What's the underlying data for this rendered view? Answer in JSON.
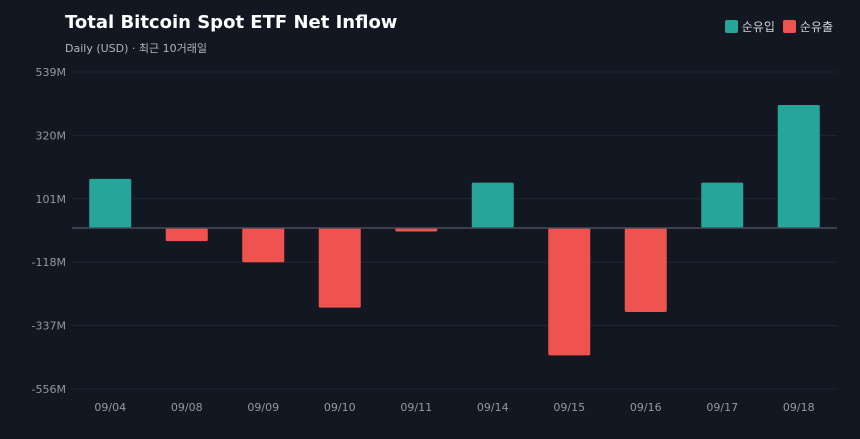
{
  "header": {
    "title": "Total Bitcoin Spot ETF Net Inflow",
    "subtitle": "Daily (USD) · 최근 10거래일"
  },
  "legend": [
    {
      "label": "순유입",
      "color": "#26a69a"
    },
    {
      "label": "순유출",
      "color": "#ef5350"
    }
  ],
  "colors": {
    "positive": "#26a69a",
    "negative": "#ef5350",
    "grid": "#222632",
    "zero_line": "#4a4e5a",
    "background": "#131722"
  },
  "chart_data": {
    "type": "bar",
    "categories": [
      "09/04",
      "09/08",
      "09/09",
      "09/10",
      "09/11",
      "09/14",
      "09/15",
      "09/16",
      "09/17",
      "09/18"
    ],
    "values": [
      170,
      -45,
      -118,
      -275,
      -12,
      157,
      -440,
      -290,
      157,
      425
    ],
    "y_ticks": [
      539,
      320,
      101,
      -118,
      -337,
      -556
    ],
    "y_tick_labels": [
      "539M",
      "320M",
      "101M",
      "-118M",
      "-337M",
      "-556M"
    ],
    "ylim": [
      -556,
      539
    ],
    "grid": true,
    "legend_position": "top-right"
  }
}
